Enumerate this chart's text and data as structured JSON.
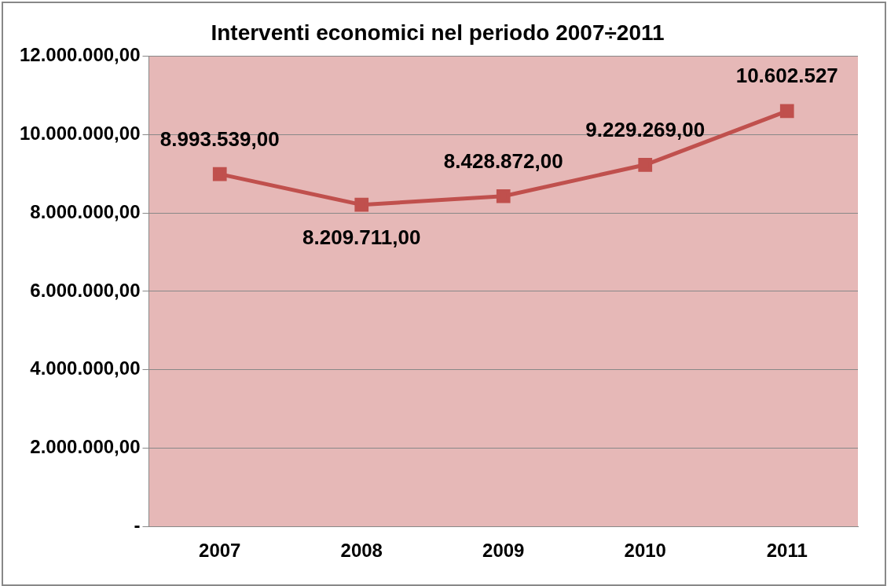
{
  "chart_data": {
    "type": "line",
    "title": "Interventi economici nel periodo 2007÷2011",
    "categories": [
      "2007",
      "2008",
      "2009",
      "2010",
      "2011"
    ],
    "series": [
      {
        "color": "#c0504d",
        "values": [
          8993539,
          8209711,
          8428872,
          9229269,
          10602527
        ],
        "value_labels": [
          "8.993.539,00",
          "8.209.711,00",
          "8.428.872,00",
          "9.229.269,00",
          "10.602.527"
        ]
      }
    ],
    "ylim": [
      0,
      12000000
    ],
    "yticks": [
      {
        "value": 0,
        "label": "-"
      },
      {
        "value": 2000000,
        "label": "2.000.000,00"
      },
      {
        "value": 4000000,
        "label": "4.000.000,00"
      },
      {
        "value": 6000000,
        "label": "6.000.000,00"
      },
      {
        "value": 8000000,
        "label": "8.000.000,00"
      },
      {
        "value": 10000000,
        "label": "10.000.000,00"
      },
      {
        "value": 12000000,
        "label": "12.000.000,00"
      }
    ],
    "grid": "y",
    "legend": false,
    "marker": "square",
    "line_style": "solid"
  }
}
